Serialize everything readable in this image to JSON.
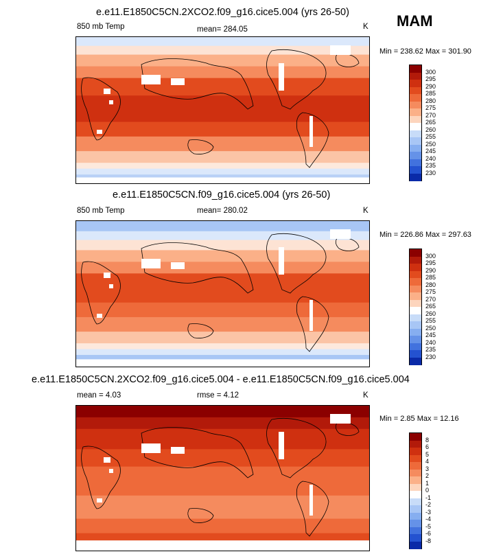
{
  "season": "MAM",
  "panels": [
    {
      "title": "e.e11.E1850C5CN.2XCO2.f09_g16.cice5.004 (yrs 26-50)",
      "variable": "850 mb Temp",
      "stat_text": "mean= 284.05",
      "stat2_text": "",
      "units": "K",
      "minmax": "Min = 238.62 Max = 301.90",
      "colorbar_labels": [
        "300",
        "295",
        "290",
        "285",
        "280",
        "275",
        "270",
        "265",
        "260",
        "255",
        "250",
        "245",
        "240",
        "235",
        "230"
      ],
      "colorbar_colors": [
        "#8b0000",
        "#b21a0a",
        "#cf3010",
        "#e24b1e",
        "#ee6a3a",
        "#f58b5e",
        "#fbb088",
        "#fdd5bd",
        "#ffffff",
        "#c8dcf8",
        "#a8c6f5",
        "#86aef0",
        "#6592e8",
        "#4272de",
        "#2452d0",
        "#0a2aa8"
      ],
      "map_style": "warm"
    },
    {
      "title": "e.e11.E1850C5CN.f09_g16.cice5.004 (yrs 26-50)",
      "variable": "850 mb Temp",
      "stat_text": "mean= 280.02",
      "stat2_text": "",
      "units": "K",
      "minmax": "Min = 226.86 Max = 297.63",
      "colorbar_labels": [
        "300",
        "295",
        "290",
        "285",
        "280",
        "275",
        "270",
        "265",
        "260",
        "255",
        "250",
        "245",
        "240",
        "235",
        "230"
      ],
      "colorbar_colors": [
        "#8b0000",
        "#b21a0a",
        "#cf3010",
        "#e24b1e",
        "#ee6a3a",
        "#f58b5e",
        "#fbb088",
        "#fdd5bd",
        "#ffffff",
        "#c8dcf8",
        "#a8c6f5",
        "#86aef0",
        "#6592e8",
        "#4272de",
        "#2452d0",
        "#0a2aa8"
      ],
      "map_style": "cool"
    },
    {
      "title": "e.e11.E1850C5CN.2XCO2.f09_g16.cice5.004 - e.e11.E1850C5CN.f09_g16.cice5.004",
      "variable": "",
      "stat_text": "mean =   4.03",
      "stat2_text": "rmse =   4.12",
      "units": "K",
      "minmax": "Min =  2.85 Max =  12.16",
      "colorbar_labels": [
        "8",
        "6",
        "5",
        "4",
        "3",
        "2",
        "1",
        "0",
        "-1",
        "-2",
        "-3",
        "-4",
        "-5",
        "-6",
        "-8"
      ],
      "colorbar_colors": [
        "#8b0000",
        "#b21a0a",
        "#cf3010",
        "#e24b1e",
        "#ee6a3a",
        "#f58b5e",
        "#fbb088",
        "#fdd5bd",
        "#ffffff",
        "#c8dcf8",
        "#a8c6f5",
        "#86aef0",
        "#6592e8",
        "#4272de",
        "#2452d0",
        "#0a2aa8"
      ],
      "map_style": "diff"
    }
  ]
}
